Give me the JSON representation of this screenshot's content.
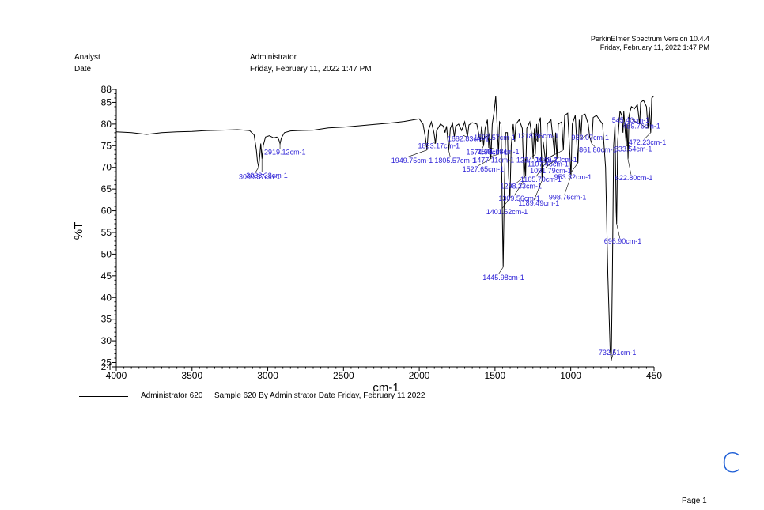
{
  "header": {
    "software": "PerkinElmer Spectrum Version 10.4.4",
    "datetime": "Friday, February 11, 2022 1:47 PM"
  },
  "meta": {
    "analyst_label": "Analyst",
    "analyst_value": "Administrator",
    "date_label": "Date",
    "date_value": "Friday, February 11, 2022 1:47 PM"
  },
  "legend": {
    "name": "Administrator 620",
    "description": "Sample 620 By Administrator Date Friday, February 11 2022"
  },
  "footer": {
    "page": "Page 1"
  },
  "annotation": {
    "mark": "C"
  },
  "colors": {
    "line": "#000000",
    "peak_label": "#2b1fd6"
  },
  "chart_data": {
    "type": "line",
    "title": "",
    "xlabel": "cm-1",
    "ylabel": "%T",
    "xlim": [
      4000,
      450
    ],
    "ylim": [
      24,
      88
    ],
    "x_ticks": [
      4000,
      3500,
      3000,
      2500,
      2000,
      1500,
      1000,
      450
    ],
    "y_ticks": [
      24,
      25,
      30,
      35,
      40,
      45,
      50,
      55,
      60,
      65,
      70,
      75,
      80,
      85,
      88
    ],
    "series": [
      {
        "name": "Administrator 620",
        "points": [
          [
            4000,
            78.2
          ],
          [
            3900,
            78.0
          ],
          [
            3800,
            77.6
          ],
          [
            3700,
            78.0
          ],
          [
            3600,
            78.2
          ],
          [
            3500,
            78.3
          ],
          [
            3400,
            78.5
          ],
          [
            3300,
            78.6
          ],
          [
            3200,
            78.7
          ],
          [
            3120,
            78.5
          ],
          [
            3090,
            77.5
          ],
          [
            3075,
            74.0
          ],
          [
            3068,
            71.5
          ],
          [
            3060,
            70.0
          ],
          [
            3052,
            73.0
          ],
          [
            3046,
            75.5
          ],
          [
            3038,
            72.0
          ],
          [
            3030,
            75.0
          ],
          [
            3015,
            77.0
          ],
          [
            2990,
            77.3
          ],
          [
            2960,
            76.8
          ],
          [
            2940,
            77.0
          ],
          [
            2928,
            76.5
          ],
          [
            2919,
            75.5
          ],
          [
            2910,
            76.8
          ],
          [
            2890,
            78.0
          ],
          [
            2850,
            78.4
          ],
          [
            2800,
            78.5
          ],
          [
            2700,
            78.6
          ],
          [
            2600,
            79.1
          ],
          [
            2500,
            79.3
          ],
          [
            2400,
            79.6
          ],
          [
            2300,
            79.9
          ],
          [
            2200,
            80.2
          ],
          [
            2100,
            80.6
          ],
          [
            2000,
            81.2
          ],
          [
            1975,
            80.0
          ],
          [
            1960,
            77.0
          ],
          [
            1949,
            74.0
          ],
          [
            1940,
            78.5
          ],
          [
            1920,
            80.5
          ],
          [
            1903,
            78.0
          ],
          [
            1893,
            75.5
          ],
          [
            1885,
            78.5
          ],
          [
            1860,
            80.0
          ],
          [
            1840,
            79.5
          ],
          [
            1830,
            78.0
          ],
          [
            1820,
            79.5
          ],
          [
            1805,
            74.0
          ],
          [
            1795,
            79.0
          ],
          [
            1780,
            80.2
          ],
          [
            1768,
            77.0
          ],
          [
            1760,
            79.5
          ],
          [
            1740,
            80.0
          ],
          [
            1720,
            78.5
          ],
          [
            1700,
            80.5
          ],
          [
            1682,
            77.0
          ],
          [
            1672,
            79.8
          ],
          [
            1650,
            80.3
          ],
          [
            1620,
            80.0
          ],
          [
            1597,
            76.0
          ],
          [
            1588,
            79.5
          ],
          [
            1575,
            75.0
          ],
          [
            1565,
            79.0
          ],
          [
            1550,
            81.0
          ],
          [
            1541,
            74.5
          ],
          [
            1535,
            78.0
          ],
          [
            1527,
            72.0
          ],
          [
            1518,
            80.0
          ],
          [
            1505,
            83.0
          ],
          [
            1495,
            86.5
          ],
          [
            1480,
            75.5
          ],
          [
            1477,
            73.0
          ],
          [
            1470,
            80.5
          ],
          [
            1460,
            80.0
          ],
          [
            1452,
            60.0
          ],
          [
            1445.98,
            47.0
          ],
          [
            1438,
            65.0
          ],
          [
            1430,
            78.0
          ],
          [
            1418,
            78.0
          ],
          [
            1410,
            68.0
          ],
          [
            1401,
            63.0
          ],
          [
            1393,
            75.0
          ],
          [
            1380,
            80.0
          ],
          [
            1370,
            76.0
          ],
          [
            1362,
            80.0
          ],
          [
            1340,
            81.0
          ],
          [
            1320,
            79.0
          ],
          [
            1309,
            67.0
          ],
          [
            1300,
            72.0
          ],
          [
            1298,
            68.0
          ],
          [
            1290,
            79.0
          ],
          [
            1270,
            80.5
          ],
          [
            1255,
            77.0
          ],
          [
            1248,
            72.0
          ],
          [
            1240,
            79.0
          ],
          [
            1234,
            73.0
          ],
          [
            1225,
            80.0
          ],
          [
            1218,
            76.0
          ],
          [
            1212,
            80.0
          ],
          [
            1200,
            81.5
          ],
          [
            1189,
            67.0
          ],
          [
            1182,
            76.0
          ],
          [
            1165,
            71.0
          ],
          [
            1155,
            80.0
          ],
          [
            1130,
            81.0
          ],
          [
            1107,
            73.0
          ],
          [
            1100,
            78.0
          ],
          [
            1091,
            72.0
          ],
          [
            1082,
            80.0
          ],
          [
            1060,
            80.5
          ],
          [
            1049,
            74.0
          ],
          [
            1040,
            82.0
          ],
          [
            1020,
            82.5
          ],
          [
            998,
            68.0
          ],
          [
            990,
            80.0
          ],
          [
            970,
            82.0
          ],
          [
            953,
            71.0
          ],
          [
            944,
            81.0
          ],
          [
            933,
            76.5
          ],
          [
            925,
            82.0
          ],
          [
            905,
            82.3
          ],
          [
            885,
            80.0
          ],
          [
            875,
            77.0
          ],
          [
            861,
            75.5
          ],
          [
            852,
            81.5
          ],
          [
            830,
            82.0
          ],
          [
            810,
            81.0
          ],
          [
            790,
            80.0
          ],
          [
            770,
            70.0
          ],
          [
            755,
            45.0
          ],
          [
            740,
            28.0
          ],
          [
            732.51,
            25.5
          ],
          [
            725,
            45.0
          ],
          [
            717,
            75.0
          ],
          [
            708,
            80.0
          ],
          [
            700,
            60.0
          ],
          [
            696.9,
            57.0
          ],
          [
            690,
            76.0
          ],
          [
            675,
            83.0
          ],
          [
            663,
            82.0
          ],
          [
            655,
            78.0
          ],
          [
            650,
            83.0
          ],
          [
            633,
            75.0
          ],
          [
            628,
            80.0
          ],
          [
            622,
            72.0
          ],
          [
            615,
            82.0
          ],
          [
            600,
            84.0
          ],
          [
            580,
            83.5
          ],
          [
            560,
            84.5
          ],
          [
            545,
            80.0
          ],
          [
            538,
            85.0
          ],
          [
            520,
            85.5
          ],
          [
            500,
            84.0
          ],
          [
            490,
            79.0
          ],
          [
            482,
            84.0
          ],
          [
            472,
            78.0
          ],
          [
            465,
            86.0
          ],
          [
            450,
            86.5
          ]
        ]
      }
    ],
    "peaks": [
      {
        "label": "3060.37cm-1",
        "x": 3060.37,
        "y": 70.0
      },
      {
        "label": "3038.38cm-1",
        "x": 3038.38,
        "y": 72.0
      },
      {
        "label": "2919.12cm-1",
        "x": 2919.12,
        "y": 75.5
      },
      {
        "label": "1949.75cm-1",
        "x": 1949.75,
        "y": 74.0
      },
      {
        "label": "1893.17cm-1",
        "x": 1893.17,
        "y": 75.5
      },
      {
        "label": "1805.57cm-1",
        "x": 1805.57,
        "y": 74.0
      },
      {
        "label": "1682.83cm-1",
        "x": 1682.83,
        "y": 77.0
      },
      {
        "label": "1597.57cm-1",
        "x": 1597.57,
        "y": 76.0
      },
      {
        "label": "1574.98cm-1",
        "x": 1574.98,
        "y": 75.0
      },
      {
        "label": "1541.08cm-1",
        "x": 1541.08,
        "y": 74.5
      },
      {
        "label": "1527.65cm-1",
        "x": 1527.65,
        "y": 72.0
      },
      {
        "label": "1477.11cm-1",
        "x": 1477.11,
        "y": 73.0
      },
      {
        "label": "1445.98cm-1",
        "x": 1445.98,
        "y": 47.0
      },
      {
        "label": "1401.62cm-1",
        "x": 1401.62,
        "y": 63.0
      },
      {
        "label": "1309.56cm-1",
        "x": 1309.56,
        "y": 67.0
      },
      {
        "label": "1298.33cm-1",
        "x": 1298.33,
        "y": 68.0
      },
      {
        "label": "1234.04cm-1",
        "x": 1234.04,
        "y": 73.0
      },
      {
        "label": "1218.86cm-1",
        "x": 1218.86,
        "y": 76.0
      },
      {
        "label": "1189.49cm-1",
        "x": 1189.49,
        "y": 67.0
      },
      {
        "label": "1165.70cm-1",
        "x": 1165.7,
        "y": 71.0
      },
      {
        "label": "1107.48cm-1",
        "x": 1107.48,
        "y": 73.0
      },
      {
        "label": "1091.79cm-1",
        "x": 1091.79,
        "y": 72.0
      },
      {
        "label": "1049.20cm-1",
        "x": 1049.2,
        "y": 74.0
      },
      {
        "label": "998.76cm-1",
        "x": 998.76,
        "y": 68.0
      },
      {
        "label": "953.32cm-1",
        "x": 953.32,
        "y": 71.0
      },
      {
        "label": "933.07cm-1",
        "x": 933.07,
        "y": 76.5
      },
      {
        "label": "861.80cm-1",
        "x": 861.8,
        "y": 75.5
      },
      {
        "label": "732.51cm-1",
        "x": 732.51,
        "y": 25.5
      },
      {
        "label": "696.90cm-1",
        "x": 696.9,
        "y": 57.0
      },
      {
        "label": "633.54cm-1",
        "x": 633.54,
        "y": 75.0
      },
      {
        "label": "622.80cm-1",
        "x": 622.8,
        "y": 72.0
      },
      {
        "label": "545.40cm-1",
        "x": 545.4,
        "y": 80.0
      },
      {
        "label": "489.76cm-1",
        "x": 489.76,
        "y": 79.0
      },
      {
        "label": "472.23cm-1",
        "x": 472.23,
        "y": 78.0
      }
    ]
  }
}
